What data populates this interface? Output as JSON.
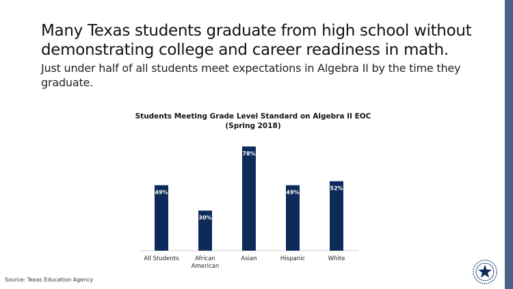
{
  "slide": {
    "headline": "Many Texas students graduate from high school without demonstrating college and career readiness in math.",
    "subhead": "Just under half of all students meet expectations in Algebra II by the time they graduate.",
    "source": "Source: Texas Education Agency",
    "accent_color": "#4a6388",
    "logo_icon": "texas-star-seal"
  },
  "chart_data": {
    "type": "bar",
    "title": "Students Meeting Grade Level Standard on Algebra II EOC",
    "subtitle": "(Spring 2018)",
    "categories": [
      "All Students",
      "African American",
      "Asian",
      "Hispanic",
      "White"
    ],
    "category_lines": [
      [
        "All Students"
      ],
      [
        "African",
        "American"
      ],
      [
        "Asian"
      ],
      [
        "Hispanic"
      ],
      [
        "White"
      ]
    ],
    "values": [
      49,
      30,
      78,
      49,
      52
    ],
    "data_labels": [
      "49%",
      "30%",
      "78%",
      "49%",
      "52%"
    ],
    "unit": "%",
    "ylim": [
      0,
      100
    ],
    "grid": false,
    "legend": "none",
    "bar_color": "#0d2a5a",
    "label_color": "#ffffff"
  }
}
